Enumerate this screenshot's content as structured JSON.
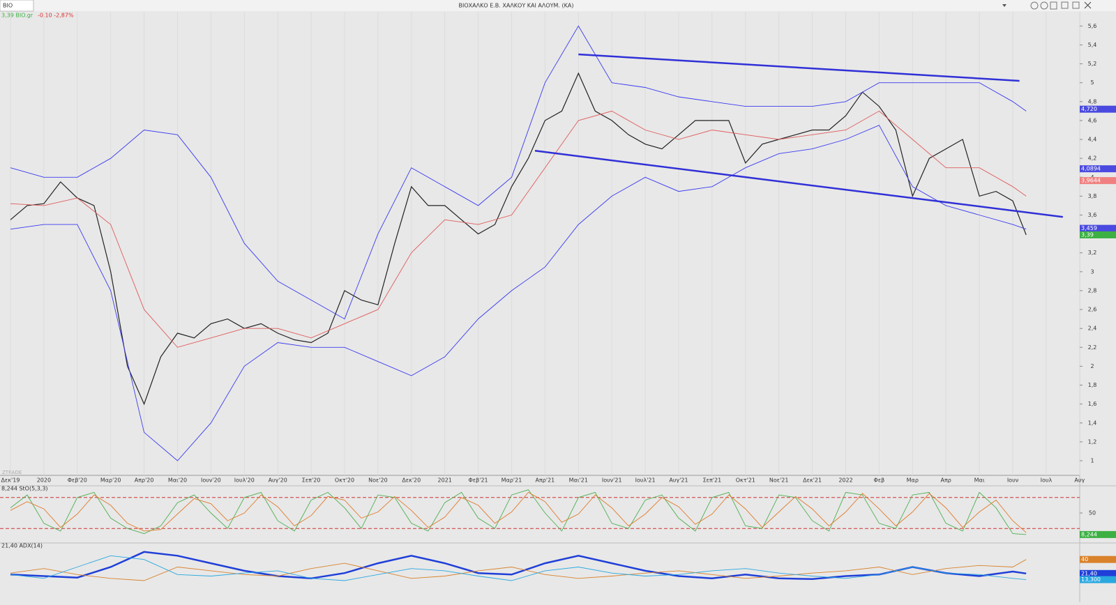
{
  "window": {
    "symbol": "BIO",
    "title": "ΒΙΟΧΑΛΚΟ Ε.Β. ΧΑΛΚΟΥ ΚΑΙ ΑΛΟΥΜ. (ΚΑ)",
    "quote": "3,39 BIO.gr",
    "change": "-0,10 -2,87%",
    "watermark": "ZTRADE"
  },
  "chart_data": [
    {
      "type": "line",
      "xticks": [
        {
          "value": 0,
          "label": "Δεκ'19"
        },
        {
          "value": 1,
          "label": "2020"
        },
        {
          "value": 2,
          "label": "Φεβ'20"
        },
        {
          "value": 3,
          "label": "Μαρ'20"
        },
        {
          "value": 4,
          "label": "Απρ'20"
        },
        {
          "value": 5,
          "label": "Μαι'20"
        },
        {
          "value": 6,
          "label": "Ιουν'20"
        },
        {
          "value": 7,
          "label": "Ιουλ'20"
        },
        {
          "value": 8,
          "label": "Αυγ'20"
        },
        {
          "value": 9,
          "label": "Σεπ'20"
        },
        {
          "value": 10,
          "label": "Οκτ'20"
        },
        {
          "value": 11,
          "label": "Νοε'20"
        },
        {
          "value": 12,
          "label": "Δεκ'20"
        },
        {
          "value": 13,
          "label": "2021"
        },
        {
          "value": 14,
          "label": "Φεβ'21"
        },
        {
          "value": 15,
          "label": "Μαρ'21"
        },
        {
          "value": 16,
          "label": "Απρ'21"
        },
        {
          "value": 17,
          "label": "Μαι'21"
        },
        {
          "value": 18,
          "label": "Ιουν'21"
        },
        {
          "value": 19,
          "label": "Ιουλ'21"
        },
        {
          "value": 20,
          "label": "Αυγ'21"
        },
        {
          "value": 21,
          "label": "Σεπ'21"
        },
        {
          "value": 22,
          "label": "Οκτ'21"
        },
        {
          "value": 23,
          "label": "Νοε'21"
        },
        {
          "value": 24,
          "label": "Δεκ'21"
        },
        {
          "value": 25,
          "label": "2022"
        },
        {
          "value": 26,
          "label": "Φεβ"
        },
        {
          "value": 27,
          "label": "Μαρ"
        },
        {
          "value": 28,
          "label": "Απρ"
        },
        {
          "value": 29,
          "label": "Μαι"
        },
        {
          "value": 30,
          "label": "Ιουν"
        },
        {
          "value": 31,
          "label": "Ιουλ"
        },
        {
          "value": 32,
          "label": "Αυγ"
        }
      ],
      "xlim": [
        -0.3,
        32.3
      ],
      "ylim": [
        0.86,
        5.75
      ],
      "yticks": [
        1,
        {
          "value": 1.2,
          "label": "1,2"
        },
        {
          "value": 1.4,
          "label": "1,4"
        },
        {
          "value": 1.6,
          "label": "1,6"
        },
        {
          "value": 1.8,
          "label": "1,8"
        },
        2,
        {
          "value": 2.2,
          "label": "2,2"
        },
        {
          "value": 2.4,
          "label": "2,4"
        },
        {
          "value": 2.6,
          "label": "2,6"
        },
        {
          "value": 2.8,
          "label": "2,8"
        },
        3,
        {
          "value": 3.2,
          "label": "3,2"
        },
        {
          "value": 3.4,
          "label": "3,4"
        },
        {
          "value": 3.6,
          "label": "3,6"
        },
        {
          "value": 3.8,
          "label": "3,8"
        },
        4,
        {
          "value": 4.2,
          "label": "4,2"
        },
        {
          "value": 4.4,
          "label": "4,4"
        },
        {
          "value": 4.6,
          "label": "4,6"
        },
        {
          "value": 4.8,
          "label": "4,8"
        },
        5,
        {
          "value": 5.2,
          "label": "5,2"
        },
        {
          "value": 5.4,
          "label": "5,4"
        },
        {
          "value": 5.6,
          "label": "5,6"
        }
      ],
      "series": [
        {
          "color": "#222222",
          "x": [
            0,
            0.5,
            1,
            1.5,
            2,
            2.5,
            3,
            3.5,
            4,
            4.5,
            5,
            5.5,
            6,
            6.5,
            7,
            7.5,
            8,
            8.5,
            9,
            9.5,
            10,
            10.5,
            11,
            11.5,
            12,
            12.5,
            13,
            13.5,
            14,
            14.5,
            15,
            15.5,
            16,
            16.5,
            17,
            17.5,
            18,
            18.5,
            19,
            19.5,
            20,
            20.5,
            21,
            21.5,
            22,
            22.5,
            23,
            23.5,
            24,
            24.5,
            25,
            25.5,
            26,
            26.5,
            27,
            27.5,
            28,
            28.5,
            29,
            29.5,
            30,
            30.4
          ],
          "values": [
            3.55,
            3.7,
            3.72,
            3.95,
            3.78,
            3.7,
            3.0,
            2.0,
            1.6,
            2.1,
            2.35,
            2.3,
            2.45,
            2.5,
            2.4,
            2.45,
            2.35,
            2.28,
            2.25,
            2.35,
            2.8,
            2.7,
            2.65,
            3.3,
            3.9,
            3.7,
            3.7,
            3.55,
            3.4,
            3.5,
            3.9,
            4.2,
            4.6,
            4.7,
            5.1,
            4.7,
            4.6,
            4.45,
            4.35,
            4.3,
            4.45,
            4.6,
            4.6,
            4.6,
            4.15,
            4.35,
            4.4,
            4.45,
            4.5,
            4.5,
            4.65,
            4.9,
            4.75,
            4.5,
            3.8,
            4.2,
            4.3,
            4.4,
            3.8,
            3.85,
            3.75,
            3.39
          ]
        },
        {
          "color": "#3a3af0",
          "x": [
            0,
            1,
            2,
            3,
            4,
            5,
            6,
            7,
            8,
            9,
            10,
            11,
            12,
            13,
            14,
            15,
            16,
            17,
            18,
            19,
            20,
            21,
            22,
            23,
            24,
            25,
            26,
            27,
            28,
            29,
            30,
            30.4
          ],
          "values": [
            4.1,
            4.0,
            4.0,
            4.2,
            4.5,
            4.45,
            4.0,
            3.3,
            2.9,
            2.7,
            2.5,
            3.4,
            4.1,
            3.9,
            3.7,
            4.0,
            5.0,
            5.6,
            5.0,
            4.95,
            4.85,
            4.8,
            4.75,
            4.75,
            4.75,
            4.8,
            5.0,
            5.0,
            5.0,
            5.0,
            4.8,
            4.7
          ]
        },
        {
          "color": "#3a3af0",
          "x": [
            0,
            1,
            2,
            3,
            4,
            5,
            6,
            7,
            8,
            9,
            10,
            11,
            12,
            13,
            14,
            15,
            16,
            17,
            18,
            19,
            20,
            21,
            22,
            23,
            24,
            25,
            26,
            27,
            28,
            29,
            30,
            30.4
          ],
          "values": [
            3.45,
            3.5,
            3.5,
            2.8,
            1.3,
            1.0,
            1.4,
            2.0,
            2.25,
            2.2,
            2.2,
            2.05,
            1.9,
            2.1,
            2.5,
            2.8,
            3.05,
            3.5,
            3.8,
            4.0,
            3.85,
            3.9,
            4.1,
            4.25,
            4.3,
            4.4,
            4.55,
            3.9,
            3.7,
            3.6,
            3.5,
            3.45
          ]
        },
        {
          "color": "#e05a5a",
          "x": [
            0,
            1,
            2,
            3,
            4,
            5,
            6,
            7,
            8,
            9,
            10,
            11,
            12,
            13,
            14,
            15,
            16,
            17,
            18,
            19,
            20,
            21,
            22,
            23,
            24,
            25,
            26,
            27,
            28,
            29,
            30,
            30.4
          ],
          "values": [
            3.72,
            3.7,
            3.78,
            3.5,
            2.6,
            2.2,
            2.3,
            2.4,
            2.4,
            2.3,
            2.45,
            2.6,
            3.2,
            3.55,
            3.5,
            3.6,
            4.1,
            4.6,
            4.7,
            4.5,
            4.4,
            4.5,
            4.45,
            4.4,
            4.45,
            4.5,
            4.7,
            4.4,
            4.1,
            4.1,
            3.9,
            3.8
          ]
        }
      ],
      "trendlines": [
        {
          "color": "#3030d8",
          "x": [
            17,
            30.2
          ],
          "values": [
            5.3,
            5.02
          ]
        },
        {
          "color": "#3030d8",
          "x": [
            15.7,
            31.5
          ],
          "values": [
            4.28,
            3.58
          ]
        }
      ],
      "price_labels": [
        {
          "value": 4.72,
          "label": "4,720",
          "color": "#4a4ae0"
        },
        {
          "value": 4.0894,
          "label": "4,0894",
          "color": "#4a4ae0"
        },
        {
          "value": 3.9644,
          "label": "3,9644",
          "color": "#f08080"
        },
        {
          "value": 3.459,
          "label": "3,459",
          "color": "#4a4ae0"
        },
        {
          "value": 3.39,
          "label": "3,39",
          "color": "#3cb043"
        }
      ]
    },
    {
      "type": "line",
      "title": "8,244 StO(5,3,3)",
      "ylim": [
        0,
        100
      ],
      "yticks": [
        50
      ],
      "levels": [
        20,
        80
      ],
      "series": [
        {
          "color": "#4caf50",
          "x": [
            0,
            0.5,
            1,
            1.5,
            2,
            2.5,
            3,
            3.5,
            4,
            4.5,
            5,
            5.5,
            6,
            6.5,
            7,
            7.5,
            8,
            8.5,
            9,
            9.5,
            10,
            10.5,
            11,
            11.5,
            12,
            12.5,
            13,
            13.5,
            14,
            14.5,
            15,
            15.5,
            16,
            16.5,
            17,
            17.5,
            18,
            18.5,
            19,
            19.5,
            20,
            20.5,
            21,
            21.5,
            22,
            22.5,
            23,
            23.5,
            24,
            24.5,
            25,
            25.5,
            26,
            26.5,
            27,
            27.5,
            28,
            28.5,
            29,
            29.5,
            30,
            30.4
          ],
          "values": [
            60,
            85,
            30,
            15,
            80,
            90,
            40,
            20,
            10,
            25,
            70,
            85,
            50,
            20,
            80,
            90,
            35,
            15,
            75,
            90,
            60,
            20,
            85,
            80,
            30,
            15,
            70,
            90,
            40,
            20,
            85,
            95,
            50,
            15,
            80,
            90,
            30,
            20,
            75,
            85,
            40,
            15,
            80,
            90,
            25,
            20,
            85,
            80,
            35,
            15,
            90,
            85,
            30,
            20,
            85,
            90,
            30,
            15,
            90,
            60,
            10,
            8.244
          ]
        },
        {
          "color": "#e07b2a",
          "x": [
            0,
            0.5,
            1,
            1.5,
            2,
            2.5,
            3,
            3.5,
            4,
            4.5,
            5,
            5.5,
            6,
            6.5,
            7,
            7.5,
            8,
            8.5,
            9,
            9.5,
            10,
            10.5,
            11,
            11.5,
            12,
            12.5,
            13,
            13.5,
            14,
            14.5,
            15,
            15.5,
            16,
            16.5,
            17,
            17.5,
            18,
            18.5,
            19,
            19.5,
            20,
            20.5,
            21,
            21.5,
            22,
            22.5,
            23,
            23.5,
            24,
            24.5,
            25,
            25.5,
            26,
            26.5,
            27,
            27.5,
            28,
            28.5,
            29,
            29.5,
            30,
            30.4
          ],
          "values": [
            55,
            72,
            58,
            22,
            48,
            85,
            65,
            30,
            15,
            18,
            48,
            78,
            68,
            35,
            50,
            85,
            62,
            25,
            45,
            82,
            75,
            40,
            52,
            82,
            55,
            22,
            42,
            80,
            65,
            30,
            52,
            90,
            72,
            32,
            48,
            85,
            60,
            25,
            48,
            80,
            62,
            28,
            48,
            85,
            58,
            22,
            52,
            82,
            58,
            25,
            52,
            88,
            58,
            25,
            52,
            88,
            60,
            22,
            52,
            75,
            35,
            12
          ]
        }
      ],
      "price_labels": [
        {
          "value": 8.244,
          "label": "8,244",
          "color": "#3cb043"
        }
      ]
    },
    {
      "type": "line",
      "title": "21,40 ADX(14)",
      "ylim": [
        0,
        60
      ],
      "series": [
        {
          "color": "#1f3fd8",
          "x": [
            0,
            1,
            2,
            3,
            4,
            5,
            6,
            7,
            8,
            9,
            10,
            11,
            12,
            13,
            14,
            15,
            16,
            17,
            18,
            19,
            20,
            21,
            22,
            23,
            24,
            25,
            26,
            27,
            28,
            29,
            30,
            30.4
          ],
          "values": [
            20,
            18,
            16,
            30,
            50,
            45,
            35,
            25,
            18,
            15,
            22,
            35,
            45,
            35,
            22,
            20,
            35,
            45,
            35,
            25,
            18,
            15,
            20,
            15,
            14,
            18,
            20,
            30,
            22,
            18,
            24,
            21.4
          ]
        },
        {
          "color": "#d9822b",
          "x": [
            0,
            1,
            2,
            3,
            4,
            5,
            6,
            7,
            8,
            9,
            10,
            11,
            12,
            13,
            14,
            15,
            16,
            17,
            18,
            19,
            20,
            21,
            22,
            23,
            24,
            25,
            26,
            27,
            28,
            29,
            30,
            30.4
          ],
          "values": [
            22,
            28,
            20,
            15,
            12,
            30,
            25,
            20,
            18,
            28,
            35,
            25,
            15,
            18,
            25,
            30,
            20,
            15,
            18,
            22,
            25,
            20,
            15,
            18,
            22,
            25,
            30,
            20,
            28,
            32,
            30,
            40
          ]
        },
        {
          "color": "#29a8e0",
          "x": [
            0,
            1,
            2,
            3,
            4,
            5,
            6,
            7,
            8,
            9,
            10,
            11,
            12,
            13,
            14,
            15,
            16,
            17,
            18,
            19,
            20,
            21,
            22,
            23,
            24,
            25,
            26,
            27,
            28,
            29,
            30,
            30.4
          ],
          "values": [
            20,
            15,
            30,
            45,
            40,
            20,
            18,
            22,
            25,
            15,
            12,
            20,
            28,
            25,
            18,
            12,
            25,
            30,
            22,
            18,
            20,
            25,
            28,
            22,
            18,
            15,
            20,
            30,
            22,
            20,
            15,
            13.3
          ]
        }
      ],
      "price_labels": [
        {
          "value": 40,
          "label": "40",
          "color": "#d9822b"
        },
        {
          "value": 21.4,
          "label": "21,40",
          "color": "#1f3fd8"
        },
        {
          "value": 13.3,
          "label": "13,300",
          "color": "#29a8e0"
        }
      ]
    }
  ]
}
